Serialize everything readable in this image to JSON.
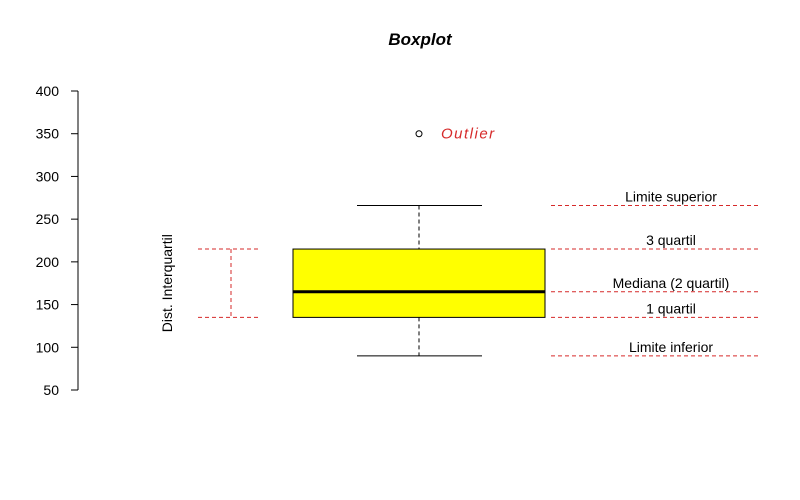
{
  "chart_data": {
    "type": "boxplot",
    "title": "Boxplot",
    "xlabel": "",
    "ylabel": "",
    "ylim": [
      50,
      400
    ],
    "yticks": [
      50,
      100,
      150,
      200,
      250,
      300,
      350,
      400
    ],
    "grid": false,
    "box": {
      "lower_whisker": 90,
      "q1": 135,
      "median": 165,
      "q3": 215,
      "upper_whisker": 266,
      "outliers": [
        350
      ],
      "fill_color": "#ffff00"
    },
    "annotations": {
      "outlier_label": "Outlier",
      "iqr_label": "Dist. Interquartil",
      "lines": [
        {
          "label": "Limite superior",
          "value": 266
        },
        {
          "label": "3 quartil",
          "value": 215
        },
        {
          "label": "Mediana (2 quartil)",
          "value": 165
        },
        {
          "label": "1 quartil",
          "value": 135
        },
        {
          "label": "Limite inferior",
          "value": 90
        }
      ],
      "color": "#d62a2a"
    }
  }
}
